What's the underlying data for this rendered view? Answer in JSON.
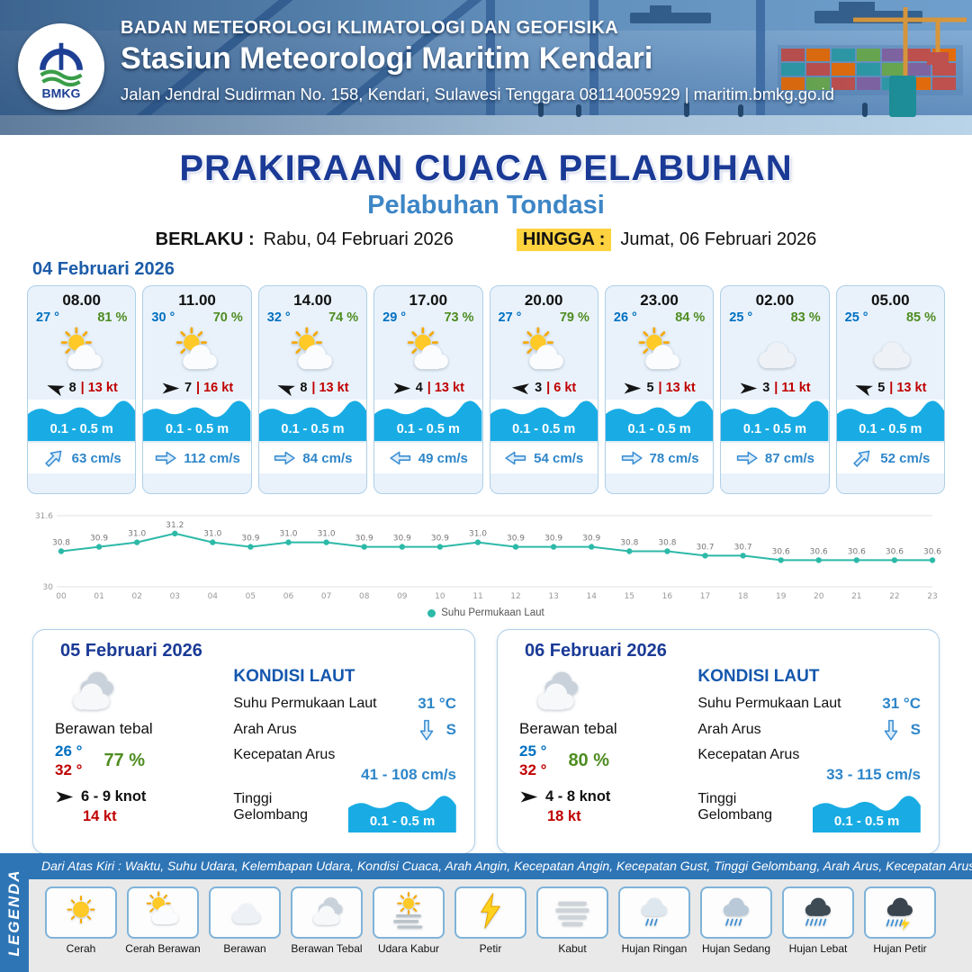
{
  "header": {
    "logo_text": "BMKG",
    "org": "BADAN METEOROLOGI KLIMATOLOGI DAN GEOFISIKA",
    "station": "Stasiun Meteorologi Maritim Kendari",
    "address": "Jalan Jendral Sudirman No. 158, Kendari, Sulawesi Tenggara  08114005929 | maritim.bmkg.go.id"
  },
  "title": {
    "main": "PRAKIRAAN CUACA PELABUHAN",
    "sub": "Pelabuhan Tondasi",
    "berlaku_label": "BERLAKU :",
    "berlaku_value": "Rabu, 04 Februari 2026",
    "hingga_label": "HINGGA :",
    "hingga_value": "Jumat, 06 Februari 2026"
  },
  "forecast_date": "04 Februari 2026",
  "labels": {
    "gust_separator": "|"
  },
  "forecast_cards": [
    {
      "time": "08.00",
      "temp": "27 °",
      "humidity": "81 %",
      "icon": "cerah-berawan",
      "wind_speed": "8",
      "gust": "13 kt",
      "wind_dir_deg": 200,
      "wave": "0.1 - 0.5 m",
      "current": "63 cm/s",
      "current_dir_deg": -45
    },
    {
      "time": "11.00",
      "temp": "30 °",
      "humidity": "70 %",
      "icon": "cerah-berawan",
      "wind_speed": "7",
      "gust": "16 kt",
      "wind_dir_deg": 0,
      "wave": "0.1 - 0.5 m",
      "current": "112 cm/s",
      "current_dir_deg": 0
    },
    {
      "time": "14.00",
      "temp": "32 °",
      "humidity": "74 %",
      "icon": "cerah-berawan",
      "wind_speed": "8",
      "gust": "13 kt",
      "wind_dir_deg": 200,
      "wave": "0.1 - 0.5 m",
      "current": "84 cm/s",
      "current_dir_deg": 0
    },
    {
      "time": "17.00",
      "temp": "29 °",
      "humidity": "73 %",
      "icon": "cerah-berawan",
      "wind_speed": "4",
      "gust": "13 kt",
      "wind_dir_deg": 0,
      "wave": "0.1 - 0.5 m",
      "current": "49 cm/s",
      "current_dir_deg": 180
    },
    {
      "time": "20.00",
      "temp": "27 °",
      "humidity": "79 %",
      "icon": "cerah-berawan",
      "wind_speed": "3",
      "gust": "6 kt",
      "wind_dir_deg": 185,
      "wave": "0.1 - 0.5 m",
      "current": "54 cm/s",
      "current_dir_deg": 180
    },
    {
      "time": "23.00",
      "temp": "26 °",
      "humidity": "84 %",
      "icon": "cerah-berawan",
      "wind_speed": "5",
      "gust": "13 kt",
      "wind_dir_deg": 0,
      "wave": "0.1 - 0.5 m",
      "current": "78 cm/s",
      "current_dir_deg": 0
    },
    {
      "time": "02.00",
      "temp": "25 °",
      "humidity": "83 %",
      "icon": "berawan",
      "wind_speed": "3",
      "gust": "11 kt",
      "wind_dir_deg": 0,
      "wave": "0.1 - 0.5 m",
      "current": "87 cm/s",
      "current_dir_deg": 0
    },
    {
      "time": "05.00",
      "temp": "25 °",
      "humidity": "85 %",
      "icon": "berawan",
      "wind_speed": "5",
      "gust": "13 kt",
      "wind_dir_deg": 200,
      "wave": "0.1 - 0.5 m",
      "current": "52 cm/s",
      "current_dir_deg": -45
    }
  ],
  "chart_data": {
    "type": "line",
    "series_name": "Suhu Permukaan Laut",
    "x": [
      "00",
      "01",
      "02",
      "03",
      "04",
      "05",
      "06",
      "07",
      "08",
      "09",
      "10",
      "11",
      "12",
      "13",
      "14",
      "15",
      "16",
      "17",
      "18",
      "19",
      "20",
      "21",
      "22",
      "23"
    ],
    "values": [
      30.8,
      30.9,
      31.0,
      31.2,
      31.0,
      30.9,
      31.0,
      31.0,
      30.9,
      30.9,
      30.9,
      31.0,
      30.9,
      30.9,
      30.9,
      30.8,
      30.8,
      30.7,
      30.7,
      30.6,
      30.6,
      30.6,
      30.6,
      30.6
    ],
    "ylim": [
      30,
      31.6
    ],
    "yticks": [
      30,
      31.6
    ],
    "line_color": "#2cb9a8",
    "grid": true,
    "legend_position": "bottom",
    "title": "",
    "xlabel": "",
    "ylabel": ""
  },
  "sea_labels": {
    "title": "KONDISI LAUT",
    "sst": "Suhu Permukaan Laut",
    "arah": "Arah Arus",
    "kecepatan": "Kecepatan Arus",
    "gelombang": "Tinggi Gelombang"
  },
  "daily_cards": [
    {
      "date": "05 Februari 2026",
      "icon": "berawan-tebal",
      "condition": "Berawan tebal",
      "temp_min": "26 °",
      "temp_max": "32 °",
      "humidity": "77 %",
      "wind_range": "6  - 9 knot",
      "gust": "14 kt",
      "wind_dir_deg": 0,
      "sea": {
        "sst": "31 °C",
        "arah": "S",
        "arah_dir_deg": 90,
        "kecepatan": "41 - 108 cm/s",
        "gelombang": "0.1 - 0.5 m"
      }
    },
    {
      "date": "06 Februari 2026",
      "icon": "berawan-tebal",
      "condition": "Berawan tebal",
      "temp_min": "25 °",
      "temp_max": "32 °",
      "humidity": "80 %",
      "wind_range": "4  - 8 knot",
      "gust": "18 kt",
      "wind_dir_deg": 0,
      "sea": {
        "sst": "31 °C",
        "arah": "S",
        "arah_dir_deg": 90,
        "kecepatan": "33 - 115 cm/s",
        "gelombang": "0.1 - 0.5 m"
      }
    }
  ],
  "legend": {
    "title": "LEGENDA",
    "note": "Dari Atas Kiri : Waktu, Suhu Udara, Kelembapan Udara, Kondisi Cuaca, Arah Angin, Kecepatan Angin, Kecepatan Gust, Tinggi Gelombang, Arah Arus, Kecepatan Arus",
    "items": [
      {
        "label": "Cerah",
        "icon": "cerah"
      },
      {
        "label": "Cerah Berawan",
        "icon": "cerah-berawan"
      },
      {
        "label": "Berawan",
        "icon": "berawan"
      },
      {
        "label": "Berawan Tebal",
        "icon": "berawan-tebal"
      },
      {
        "label": "Udara Kabur",
        "icon": "udara-kabur"
      },
      {
        "label": "Petir",
        "icon": "petir"
      },
      {
        "label": "Kabut",
        "icon": "kabut"
      },
      {
        "label": "Hujan Ringan",
        "icon": "hujan-ringan"
      },
      {
        "label": "Hujan Sedang",
        "icon": "hujan-sedang"
      },
      {
        "label": "Hujan Lebat",
        "icon": "hujan-lebat"
      },
      {
        "label": "Hujan Petir",
        "icon": "hujan-petir"
      }
    ]
  }
}
